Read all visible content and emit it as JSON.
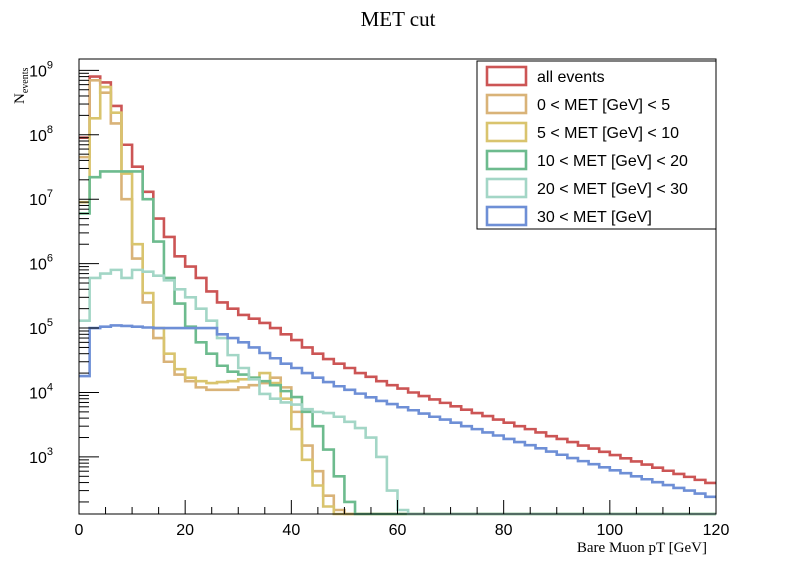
{
  "chart_data": {
    "type": "histogram-step",
    "title": "MET cut",
    "xlabel": "Bare Muon pT [GeV]",
    "ylabel_main": "N",
    "ylabel_sub": "events",
    "xlim": [
      0,
      120
    ],
    "ylim": [
      130,
      1500000000
    ],
    "log_y": true,
    "grid": false,
    "legend_position": "top-right",
    "x_ticks": [
      {
        "value": 0,
        "label": "0"
      },
      {
        "value": 20,
        "label": "20"
      },
      {
        "value": 40,
        "label": "40"
      },
      {
        "value": 60,
        "label": "60"
      },
      {
        "value": 80,
        "label": "80"
      },
      {
        "value": 100,
        "label": "100"
      },
      {
        "value": 120,
        "label": "120"
      }
    ],
    "y_ticks": [
      {
        "value": 1000,
        "base": "10",
        "exp": "3"
      },
      {
        "value": 10000,
        "base": "10",
        "exp": "4"
      },
      {
        "value": 100000,
        "base": "10",
        "exp": "5"
      },
      {
        "value": 1000000,
        "base": "10",
        "exp": "6"
      },
      {
        "value": 10000000,
        "base": "10",
        "exp": "7"
      },
      {
        "value": 100000000,
        "base": "10",
        "exp": "8"
      },
      {
        "value": 1000000000,
        "base": "10",
        "exp": "9"
      }
    ],
    "bin_width": 2,
    "series": [
      {
        "name": "all events",
        "color": "#cc5555",
        "values": [
          90000000.0,
          800000000.0,
          650000000.0,
          280000000.0,
          70000000.0,
          32000000.0,
          13000000.0,
          5000000.0,
          2600000.0,
          1300000.0,
          900000.0,
          600000.0,
          370000.0,
          250000.0,
          200000.0,
          160000.0,
          140000.0,
          120000.0,
          100000.0,
          80000.0,
          65000.0,
          50000.0,
          40000.0,
          33000.0,
          28000.0,
          24000.0,
          20000.0,
          17500.0,
          15000.0,
          13000.0,
          11500.0,
          10000.0,
          8800.0,
          7800.0,
          6900.0,
          6100.0,
          5400.0,
          4800.0,
          4300.0,
          3800.0,
          3400.0,
          3000.0,
          2700.0,
          2400.0,
          2100.0,
          1900.0,
          1700.0,
          1500.0,
          1350.0,
          1200.0,
          1070.0,
          950,
          850,
          760,
          680,
          610,
          545,
          490,
          440,
          395
        ]
      },
      {
        "name": "0 < MET [GeV] < 5",
        "color": "#d9b378",
        "values": [
          45000000.0,
          700000000.0,
          450000000.0,
          150000000.0,
          10000000.0,
          1200000.0,
          250000.0,
          70000.0,
          30000.0,
          19000.0,
          15000.0,
          12000.0,
          11000.0,
          11000.0,
          11000.0,
          12000.0,
          13000.0,
          14000.0,
          17000.0,
          12000.0,
          5000.0,
          1500.0,
          600,
          250,
          150,
          130,
          130,
          130,
          130,
          130,
          130,
          130,
          130,
          130,
          130,
          130,
          130,
          130,
          130,
          130,
          130,
          130,
          130,
          130,
          130,
          130,
          130,
          130,
          130,
          130,
          130,
          130,
          130,
          130,
          130,
          130,
          130,
          130,
          130,
          130
        ]
      },
      {
        "name": "5 < MET [GeV] < 10",
        "color": "#d9c46e",
        "values": [
          9000000.0,
          180000000.0,
          550000000.0,
          220000000.0,
          25000000.0,
          2000000.0,
          350000.0,
          100000.0,
          40000.0,
          23000.0,
          17000.0,
          15000.0,
          14000.0,
          14500.0,
          15000.0,
          16000.0,
          17000.0,
          20000.0,
          14000.0,
          8000.0,
          2700.0,
          900,
          360,
          170,
          130,
          130,
          130,
          130,
          130,
          130,
          130,
          130,
          130,
          130,
          130,
          130,
          130,
          130,
          130,
          130,
          130,
          130,
          130,
          130,
          130,
          130,
          130,
          130,
          130,
          130,
          130,
          130,
          130,
          130,
          130,
          130,
          130,
          130,
          130,
          130
        ]
      },
      {
        "name": "10 < MET [GeV] < 20",
        "color": "#6dbb8e",
        "values": [
          6000000.0,
          22000000.0,
          27000000.0,
          27000000.0,
          27000000.0,
          27000000.0,
          10000000.0,
          2200000.0,
          600000.0,
          240000.0,
          105000.0,
          60000.0,
          40000.0,
          26000.0,
          21000.0,
          19000.0,
          17000.0,
          15000.0,
          13000.0,
          10500.0,
          8500.0,
          5000.0,
          3000.0,
          1300.0,
          500,
          200,
          130,
          130,
          130,
          130,
          130,
          130,
          130,
          130,
          130,
          130,
          130,
          130,
          130,
          130,
          130,
          130,
          130,
          130,
          130,
          130,
          130,
          130,
          130,
          130,
          130,
          130,
          130,
          130,
          130,
          130,
          130,
          130,
          130,
          130
        ]
      },
      {
        "name": "20 < MET [GeV] < 30",
        "color": "#a3d6c6",
        "values": [
          130000.0,
          600000.0,
          700000.0,
          800000.0,
          600000.0,
          800000.0,
          750000.0,
          650000.0,
          550000.0,
          400000.0,
          300000.0,
          200000.0,
          130000.0,
          70000.0,
          38000.0,
          24000.0,
          16000.0,
          9500.0,
          8000.0,
          7000.0,
          6500.0,
          5500.0,
          5000.0,
          4800.0,
          4200.0,
          3500.0,
          2800.0,
          2000.0,
          1000.0,
          300,
          150,
          130,
          130,
          130,
          130,
          130,
          130,
          130,
          130,
          130,
          130,
          130,
          130,
          130,
          130,
          130,
          130,
          130,
          130,
          130,
          130,
          130,
          130,
          130,
          130,
          130,
          130,
          130,
          130,
          130
        ]
      },
      {
        "name": "30 < MET [GeV]",
        "color": "#6e8fd6",
        "values": [
          18000.0,
          100000.0,
          105000.0,
          110000.0,
          108000.0,
          105000.0,
          102000.0,
          100000.0,
          100000.0,
          100000.0,
          100000.0,
          100000.0,
          100000.0,
          80000.0,
          70000.0,
          60000.0,
          50000.0,
          41000.0,
          34000.0,
          28000.0,
          24000.0,
          20000.0,
          17000.0,
          14500.0,
          12500.0,
          11000.0,
          9600.0,
          8400.0,
          7400.0,
          6600.0,
          5900.0,
          5300.0,
          4700.0,
          4200.0,
          3800.0,
          3400.0,
          3000.0,
          2700.0,
          2400.0,
          2150.0,
          1900.0,
          1700.0,
          1520.0,
          1360.0,
          1210.0,
          1080.0,
          960,
          860,
          770,
          690,
          620,
          560,
          500,
          450,
          405,
          365,
          330,
          300,
          270,
          240
        ]
      }
    ]
  }
}
